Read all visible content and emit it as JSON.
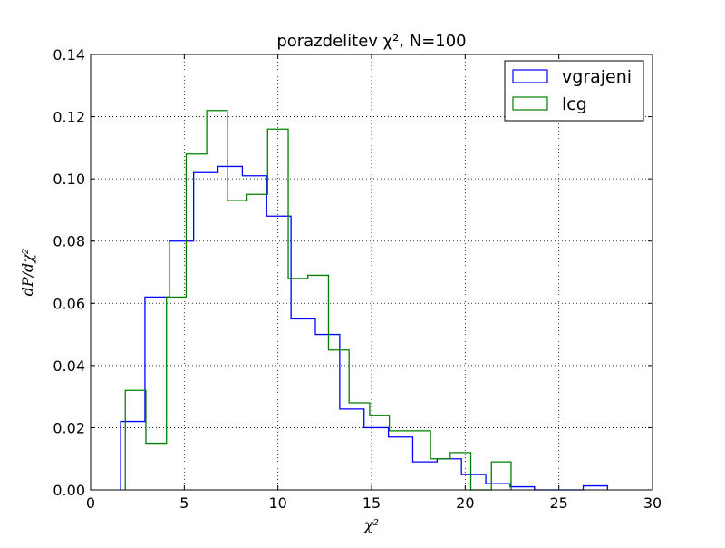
{
  "chart_data": {
    "type": "histogram",
    "title": "porazdelitev χ², N=100",
    "xlabel": "χ²",
    "ylabel": "dP/dχ²",
    "xlim": [
      0,
      30
    ],
    "ylim": [
      0,
      0.14
    ],
    "xticks": [
      0,
      5,
      10,
      15,
      20,
      25,
      30
    ],
    "yticks": [
      0.0,
      0.02,
      0.04,
      0.06,
      0.08,
      0.1,
      0.12,
      0.14
    ],
    "xtick_labels": [
      "0",
      "5",
      "10",
      "15",
      "20",
      "25",
      "30"
    ],
    "ytick_labels": [
      "0.00",
      "0.02",
      "0.04",
      "0.06",
      "0.08",
      "0.10",
      "0.12",
      "0.14"
    ],
    "grid": true,
    "legend_position": "top-right",
    "series": [
      {
        "name": "vgrajeni",
        "color": "#0000ff",
        "bin_edges": [
          1.6,
          2.9,
          4.2,
          5.5,
          6.8,
          8.1,
          9.4,
          10.7,
          12.0,
          13.3,
          14.6,
          15.9,
          17.2,
          18.5,
          19.8,
          21.1,
          22.4,
          23.7,
          25.0,
          26.3,
          27.6
        ],
        "values": [
          0.022,
          0.062,
          0.08,
          0.102,
          0.104,
          0.101,
          0.088,
          0.055,
          0.05,
          0.026,
          0.02,
          0.017,
          0.009,
          0.01,
          0.005,
          0.002,
          0.001,
          0.0,
          0.0,
          0.0013
        ]
      },
      {
        "name": "lcg",
        "color": "#008000",
        "bin_edges": [
          1.85,
          2.95,
          4.05,
          5.1,
          6.2,
          7.3,
          8.35,
          9.45,
          10.55,
          11.6,
          12.7,
          13.8,
          14.9,
          15.95,
          17.05,
          18.15,
          19.2,
          20.3,
          21.4,
          22.45
        ],
        "values": [
          0.032,
          0.015,
          0.062,
          0.108,
          0.122,
          0.093,
          0.095,
          0.116,
          0.068,
          0.069,
          0.045,
          0.028,
          0.024,
          0.019,
          0.019,
          0.01,
          0.012,
          0.0,
          0.009
        ]
      }
    ]
  }
}
